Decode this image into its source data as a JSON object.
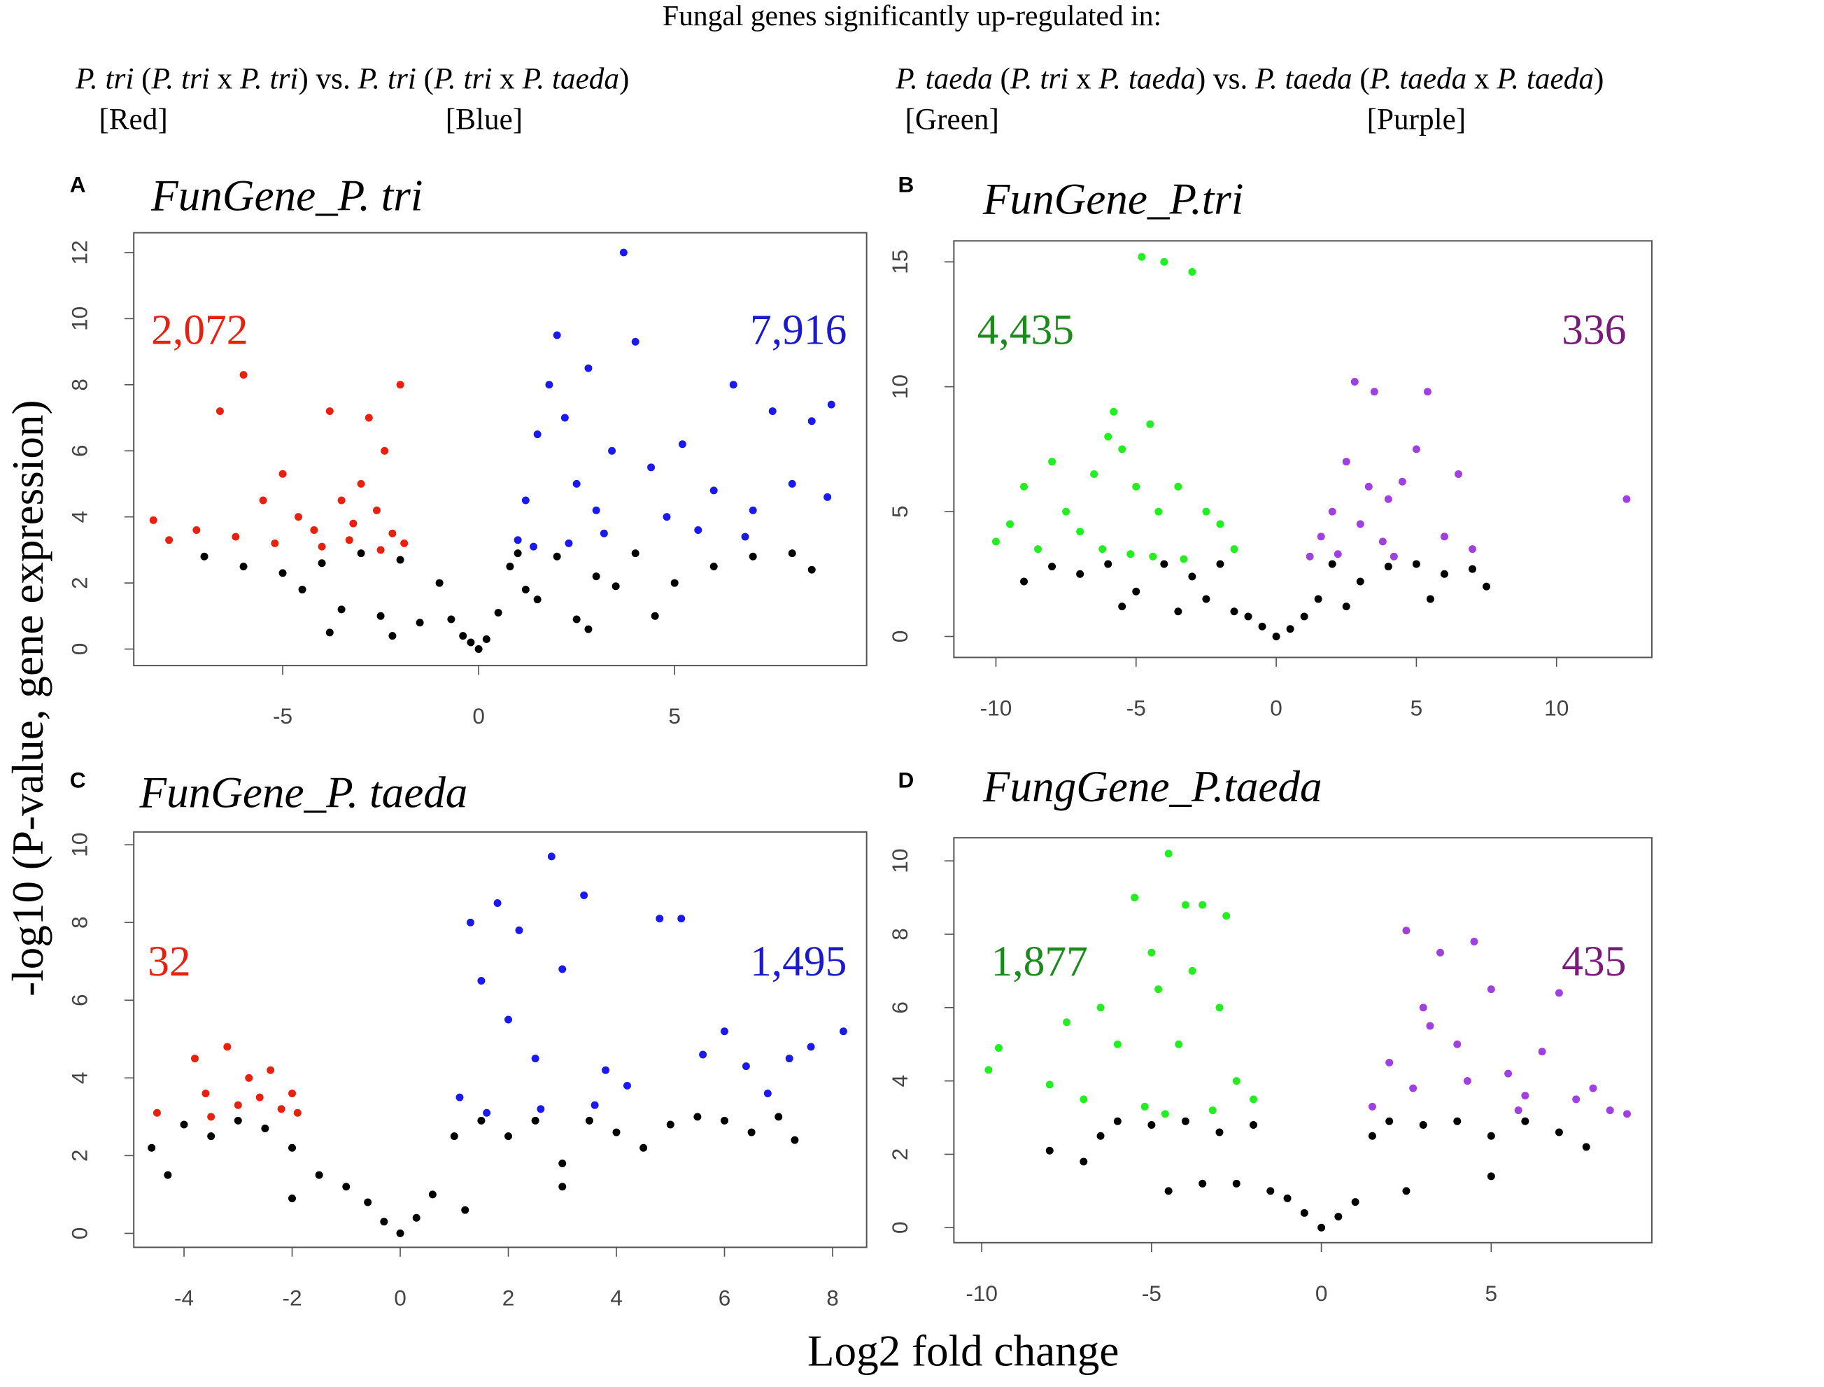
{
  "header": {
    "title": "Fungal genes significantly up-regulated in:",
    "left_line": [
      {
        "text": "P. tri",
        "italic": true
      },
      {
        "text": " (",
        "italic": false
      },
      {
        "text": "P. tri",
        "italic": true
      },
      {
        "text": " x ",
        "italic": false
      },
      {
        "text": "P. tri",
        "italic": true
      },
      {
        "text": ") vs. ",
        "italic": false
      },
      {
        "text": "P. tri",
        "italic": true
      },
      {
        "text": " (",
        "italic": false
      },
      {
        "text": "P. tri",
        "italic": true
      },
      {
        "text": " x ",
        "italic": false
      },
      {
        "text": "P. taeda",
        "italic": true
      },
      {
        "text": ")",
        "italic": false
      }
    ],
    "right_line": [
      {
        "text": "P. taeda",
        "italic": true
      },
      {
        "text": " (",
        "italic": false
      },
      {
        "text": "P. tri",
        "italic": true
      },
      {
        "text": " x ",
        "italic": false
      },
      {
        "text": "P. taeda",
        "italic": true
      },
      {
        "text": ") vs. ",
        "italic": false
      },
      {
        "text": "P. taeda",
        "italic": true
      },
      {
        "text": " (",
        "italic": false
      },
      {
        "text": "P. taeda",
        "italic": true
      },
      {
        "text": " x ",
        "italic": false
      },
      {
        "text": "P. taeda",
        "italic": true
      },
      {
        "text": ")",
        "italic": false
      }
    ],
    "color_labels": [
      "[Red]",
      "[Blue]",
      "[Green]",
      "[Purple]"
    ],
    "y_label": "-log10 (P-value, gene expression)",
    "x_label": "Log2 fold change"
  },
  "chart_data": [
    {
      "type": "scatter",
      "panel": "A",
      "title": "FunGene_P. tri",
      "xlim": [
        -8.8,
        9.9
      ],
      "ylim": [
        -0.5,
        12.6
      ],
      "xticks": [
        -5,
        0,
        5
      ],
      "yticks": [
        0,
        2,
        4,
        6,
        8,
        10,
        12
      ],
      "annotations": [
        {
          "text": "2,072",
          "color": "#e8200e"
        },
        {
          "text": "7,916",
          "color": "#1a1acc"
        }
      ],
      "series": [
        {
          "color": "#000000",
          "x": [
            -7.0,
            -6.0,
            -5.0,
            -4.5,
            -4.0,
            -3.5,
            -3.0,
            -2.5,
            -2.0,
            -1.5,
            -1.0,
            -0.7,
            -0.4,
            -0.2,
            0,
            0.2,
            0.5,
            0.8,
            1.0,
            1.5,
            2.0,
            2.5,
            3.0,
            3.5,
            4.0,
            5.0,
            6.0,
            7.0,
            8.0,
            8.5,
            -3.8,
            -2.2,
            2.8,
            4.5,
            1.2
          ],
          "values": [
            2.8,
            2.5,
            2.3,
            1.8,
            2.6,
            1.2,
            2.9,
            1.0,
            2.7,
            0.8,
            2.0,
            0.9,
            0.4,
            0.2,
            0,
            0.3,
            1.1,
            2.5,
            2.9,
            1.5,
            2.8,
            0.9,
            2.2,
            1.9,
            2.9,
            2.0,
            2.5,
            2.8,
            2.9,
            2.4,
            0.5,
            0.4,
            0.6,
            1.0,
            1.8
          ]
        },
        {
          "color": "#e8200e",
          "x": [
            -8.3,
            -7.9,
            -7.2,
            -6.6,
            -6.2,
            -6.0,
            -5.5,
            -5.0,
            -4.6,
            -4.2,
            -3.8,
            -3.5,
            -3.2,
            -3.0,
            -2.8,
            -2.6,
            -2.4,
            -2.2,
            -2.0,
            -1.9,
            -4.0,
            -3.3,
            -2.5,
            -5.2
          ],
          "values": [
            3.9,
            3.3,
            3.6,
            7.2,
            3.4,
            8.3,
            4.5,
            5.3,
            4.0,
            3.6,
            7.2,
            4.5,
            3.8,
            5.0,
            7.0,
            4.2,
            6.0,
            3.5,
            8.0,
            3.2,
            3.1,
            3.3,
            3.0,
            3.2
          ]
        },
        {
          "color": "#1a1aee",
          "x": [
            1.0,
            1.2,
            1.5,
            1.8,
            2.0,
            2.2,
            2.5,
            2.8,
            3.0,
            3.4,
            3.7,
            4.0,
            4.4,
            4.8,
            5.2,
            5.6,
            6.0,
            6.5,
            7.0,
            7.5,
            8.0,
            8.5,
            8.9,
            1.4,
            2.3,
            3.2,
            6.8,
            9.0
          ],
          "values": [
            3.3,
            4.5,
            6.5,
            8.0,
            9.5,
            7.0,
            5.0,
            8.5,
            4.2,
            6.0,
            12.0,
            9.3,
            5.5,
            4.0,
            6.2,
            3.6,
            4.8,
            8.0,
            4.2,
            7.2,
            5.0,
            6.9,
            4.6,
            3.1,
            3.2,
            3.5,
            3.4,
            7.4
          ]
        }
      ]
    },
    {
      "type": "scatter",
      "panel": "B",
      "title": "FunGene_P.tri",
      "xlim": [
        -11.5,
        13.4
      ],
      "ylim": [
        -0.84,
        15.84
      ],
      "xticks": [
        -10,
        -5,
        0,
        5,
        10
      ],
      "yticks": [
        0,
        5,
        10,
        15
      ],
      "annotations": [
        {
          "text": "4,435",
          "color": "#1e8a1e"
        },
        {
          "text": "336",
          "color": "#7a1a7a"
        }
      ],
      "series": [
        {
          "color": "#000000",
          "x": [
            -9,
            -8,
            -7,
            -6,
            -5,
            -4,
            -3,
            -2.5,
            -2,
            -1.5,
            -1,
            -0.5,
            0,
            0.5,
            1,
            1.5,
            2,
            3,
            4,
            5,
            6,
            7,
            7.5,
            -5.5,
            -3.5,
            2.5,
            5.5
          ],
          "values": [
            2.2,
            2.8,
            2.5,
            2.9,
            1.8,
            2.9,
            2.4,
            1.5,
            2.9,
            1.0,
            0.8,
            0.4,
            0,
            0.3,
            0.8,
            1.5,
            2.9,
            2.2,
            2.8,
            2.9,
            2.5,
            2.7,
            2.0,
            1.2,
            1.0,
            1.2,
            1.5
          ]
        },
        {
          "color": "#22ee22",
          "x": [
            -10,
            -9.5,
            -9,
            -8.5,
            -8,
            -7.5,
            -7,
            -6.5,
            -6,
            -5.8,
            -5.5,
            -5,
            -4.8,
            -4.5,
            -4.2,
            -4,
            -3.5,
            -3,
            -2.5,
            -2,
            -1.5,
            -5.2,
            -6.2,
            -4.4,
            -3.3
          ],
          "values": [
            3.8,
            4.5,
            6.0,
            3.5,
            7.0,
            5.0,
            4.2,
            6.5,
            8.0,
            9.0,
            7.5,
            6.0,
            15.2,
            8.5,
            5.0,
            15.0,
            6.0,
            14.6,
            5.0,
            4.5,
            3.5,
            3.3,
            3.5,
            3.2,
            3.1
          ]
        },
        {
          "color": "#a040e0",
          "x": [
            1.2,
            1.6,
            2.0,
            2.5,
            2.8,
            3.0,
            3.3,
            3.5,
            3.8,
            4.0,
            4.5,
            5.0,
            5.4,
            6.0,
            6.5,
            7.0,
            12.5,
            2.2,
            4.2
          ],
          "values": [
            3.2,
            4.0,
            5.0,
            7.0,
            10.2,
            4.5,
            6.0,
            9.8,
            3.8,
            5.5,
            6.2,
            7.5,
            9.8,
            4.0,
            6.5,
            3.5,
            5.5,
            3.3,
            3.2
          ]
        }
      ]
    },
    {
      "type": "scatter",
      "panel": "C",
      "title": "FunGene_P. taeda",
      "xlim": [
        -4.93,
        8.63
      ],
      "ylim": [
        -0.36,
        10.33
      ],
      "xticks": [
        -4,
        -2,
        0,
        2,
        4,
        6,
        8
      ],
      "yticks": [
        0,
        2,
        4,
        6,
        8,
        10
      ],
      "annotations": [
        {
          "text": "32",
          "color": "#e8200e"
        },
        {
          "text": "1,495",
          "color": "#1a1acc"
        }
      ],
      "series": [
        {
          "color": "#000000",
          "x": [
            -4.6,
            -4.3,
            -4,
            -3.5,
            -3,
            -2.5,
            -2,
            -1.5,
            -1,
            -0.6,
            -0.3,
            0,
            0.3,
            0.6,
            1,
            1.5,
            2,
            2.5,
            3,
            3.5,
            4,
            4.5,
            5,
            5.5,
            6,
            6.5,
            7,
            7.3,
            -2,
            1.2,
            3
          ],
          "values": [
            2.2,
            1.5,
            2.8,
            2.5,
            2.9,
            2.7,
            2.2,
            1.5,
            1.2,
            0.8,
            0.3,
            0,
            0.4,
            1.0,
            2.5,
            2.9,
            2.5,
            2.9,
            1.8,
            2.9,
            2.6,
            2.2,
            2.8,
            3.0,
            2.9,
            2.6,
            3.0,
            2.4,
            0.9,
            0.6,
            1.2
          ]
        },
        {
          "color": "#e8200e",
          "x": [
            -4.5,
            -3.8,
            -3.6,
            -3.2,
            -3.0,
            -2.8,
            -2.6,
            -2.4,
            -2.2,
            -2.0,
            -1.9,
            -3.5
          ],
          "values": [
            3.1,
            4.5,
            3.6,
            4.8,
            3.3,
            4.0,
            3.5,
            4.2,
            3.2,
            3.6,
            3.1,
            3.0
          ]
        },
        {
          "color": "#1a1aee",
          "x": [
            1.1,
            1.3,
            1.5,
            1.8,
            2.0,
            2.2,
            2.5,
            2.8,
            3.0,
            3.4,
            3.8,
            4.2,
            4.8,
            5.2,
            5.6,
            6.0,
            6.4,
            6.8,
            7.2,
            7.6,
            8.2,
            1.6,
            2.6,
            3.6
          ],
          "values": [
            3.5,
            8.0,
            6.5,
            8.5,
            5.5,
            7.8,
            4.5,
            9.7,
            6.8,
            8.7,
            4.2,
            3.8,
            8.1,
            8.1,
            4.6,
            5.2,
            4.3,
            3.6,
            4.5,
            4.8,
            5.2,
            3.1,
            3.2,
            3.3
          ]
        }
      ]
    },
    {
      "type": "scatter",
      "panel": "D",
      "title": "FungGene_P.taeda",
      "xlim": [
        -10.82,
        9.73
      ],
      "ylim": [
        -0.41,
        10.63
      ],
      "xticks": [
        -10,
        -5,
        0,
        5
      ],
      "yticks": [
        0,
        2,
        4,
        6,
        8,
        10
      ],
      "annotations": [
        {
          "text": "1,877",
          "color": "#1e8a1e"
        },
        {
          "text": "435",
          "color": "#7a1a7a"
        }
      ],
      "series": [
        {
          "color": "#000000",
          "x": [
            -8,
            -7,
            -6.5,
            -6,
            -5,
            -4,
            -3,
            -2.5,
            -2,
            -1.5,
            -1,
            -0.5,
            0,
            0.5,
            1,
            1.5,
            2,
            3,
            4,
            5,
            6,
            7,
            7.8,
            -4.5,
            -3.5,
            2.5,
            5
          ],
          "values": [
            2.1,
            1.8,
            2.5,
            2.9,
            2.8,
            2.9,
            2.6,
            1.2,
            2.8,
            1.0,
            0.8,
            0.4,
            0,
            0.3,
            0.7,
            2.5,
            2.9,
            2.8,
            2.9,
            2.5,
            2.9,
            2.6,
            2.2,
            1.0,
            1.2,
            1.0,
            1.4
          ]
        },
        {
          "color": "#22ee22",
          "x": [
            -9.8,
            -9.5,
            -8,
            -7.5,
            -7,
            -6.5,
            -6,
            -5.5,
            -5,
            -4.8,
            -4.5,
            -4.2,
            -4,
            -3.8,
            -3.5,
            -3,
            -2.8,
            -2.5,
            -2,
            -5.2,
            -4.6,
            -3.2
          ],
          "values": [
            4.3,
            4.9,
            3.9,
            5.6,
            3.5,
            6.0,
            5.0,
            9.0,
            7.5,
            6.5,
            10.2,
            5.0,
            8.8,
            7.0,
            8.8,
            6.0,
            8.5,
            4.0,
            3.5,
            3.3,
            3.1,
            3.2
          ]
        },
        {
          "color": "#a040e0",
          "x": [
            1.5,
            2,
            2.5,
            2.7,
            3,
            3.5,
            4,
            4.3,
            4.5,
            5,
            5.5,
            6,
            6.5,
            7,
            7.5,
            8,
            8.5,
            9,
            3.2,
            5.8
          ],
          "values": [
            3.3,
            4.5,
            8.1,
            3.8,
            6.0,
            7.5,
            5.0,
            4.0,
            7.8,
            6.5,
            4.2,
            3.6,
            4.8,
            6.4,
            3.5,
            3.8,
            3.2,
            3.1,
            5.5,
            3.2
          ]
        }
      ]
    }
  ]
}
